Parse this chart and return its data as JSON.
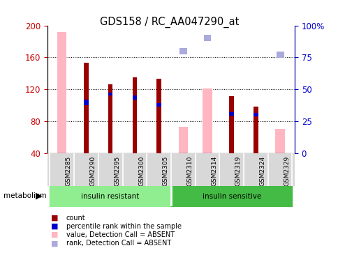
{
  "title": "GDS158 / RC_AA047290_at",
  "samples": [
    "GSM2285",
    "GSM2290",
    "GSM2295",
    "GSM2300",
    "GSM2305",
    "GSM2310",
    "GSM2314",
    "GSM2319",
    "GSM2324",
    "GSM2329"
  ],
  "groups": [
    {
      "label": "insulin resistant",
      "color": "#90EE90",
      "start": 0,
      "end": 4
    },
    {
      "label": "insulin sensitive",
      "color": "#33CC33",
      "start": 5,
      "end": 9
    }
  ],
  "ylim": [
    40,
    200
  ],
  "ylim_right": [
    0,
    100
  ],
  "yticks_left": [
    40,
    80,
    120,
    160,
    200
  ],
  "yticks_right": [
    0,
    25,
    50,
    75,
    100
  ],
  "ylabel_left_color": "#CC0000",
  "ylabel_right_color": "#0000CC",
  "count_values": [
    0,
    153,
    126,
    135,
    133,
    0,
    0,
    111,
    98,
    0
  ],
  "rank_bottom": [
    0,
    100,
    112,
    107,
    98,
    0,
    0,
    87,
    86,
    0
  ],
  "rank_top": [
    0,
    107,
    116,
    112,
    103,
    0,
    0,
    91,
    90,
    0
  ],
  "pink_values": [
    192,
    0,
    0,
    0,
    0,
    73,
    121,
    0,
    0,
    70
  ],
  "blue_rank_vals": [
    0,
    0,
    0,
    0,
    0,
    80,
    90,
    0,
    0,
    77
  ],
  "blue_rank_size": [
    0,
    0,
    0,
    0,
    0,
    5,
    5,
    0,
    0,
    5
  ],
  "count_color": "#990000",
  "rank_color": "#0000CC",
  "pink_color": "#FFB6C1",
  "lightblue_color": "#AAAADD",
  "bar_width": 0.35,
  "metadata_label": "metabolism",
  "legend_items": [
    {
      "label": "count",
      "color": "#990000"
    },
    {
      "label": "percentile rank within the sample",
      "color": "#0000CC"
    },
    {
      "label": "value, Detection Call = ABSENT",
      "color": "#FFB6C1"
    },
    {
      "label": "rank, Detection Call = ABSENT",
      "color": "#AAAADD"
    }
  ]
}
